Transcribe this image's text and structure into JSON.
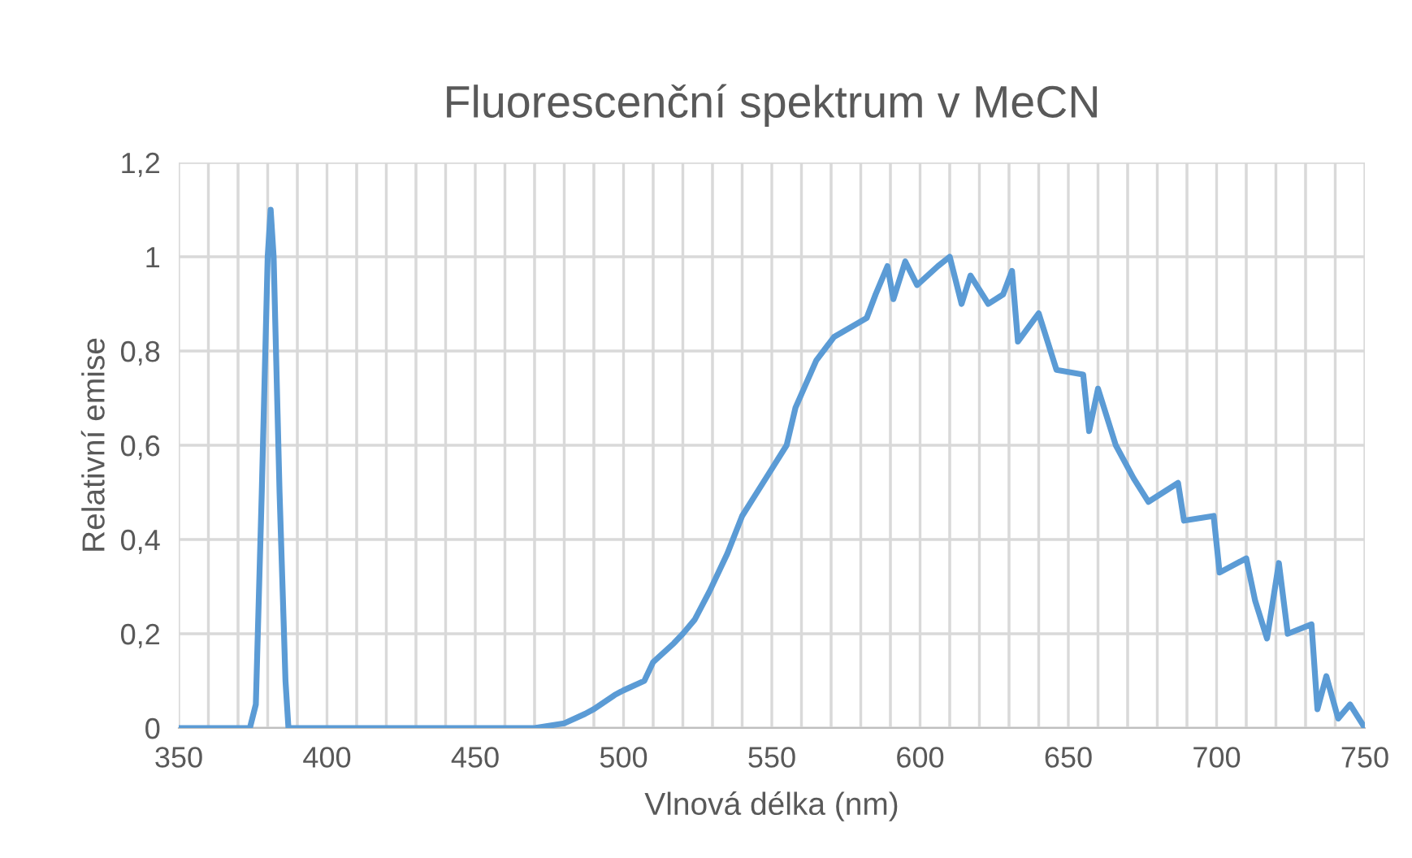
{
  "chart_data": {
    "type": "line",
    "title": "Fluorescenční spektrum v MeCN",
    "xlabel": "Vlnová délka (nm)",
    "ylabel": "Relativní emise",
    "series": [
      {
        "color": "#5b9bd5",
        "x": [
          350,
          374,
          376,
          378,
          380,
          381,
          382,
          384,
          386,
          387,
          470,
          480,
          487,
          490,
          497,
          500,
          507,
          510,
          517,
          520,
          524,
          529,
          535,
          540,
          543,
          549,
          555,
          558,
          565,
          571,
          582,
          585,
          589,
          591,
          595,
          599,
          606,
          610,
          614,
          617,
          623,
          628,
          631,
          633,
          640,
          646,
          655,
          657,
          660,
          666,
          672,
          677,
          687,
          689,
          699,
          701,
          710,
          713,
          717,
          721,
          724,
          732,
          734,
          737,
          741,
          745,
          749,
          750
        ],
        "values": [
          0,
          0,
          0.05,
          0.5,
          1.0,
          1.1,
          1.0,
          0.5,
          0.1,
          0,
          0,
          0.01,
          0.03,
          0.04,
          0.07,
          0.08,
          0.1,
          0.14,
          0.18,
          0.2,
          0.23,
          0.29,
          0.37,
          0.45,
          0.48,
          0.54,
          0.6,
          0.68,
          0.78,
          0.83,
          0.87,
          0.92,
          0.98,
          0.91,
          0.99,
          0.94,
          0.98,
          1.0,
          0.9,
          0.96,
          0.9,
          0.92,
          0.97,
          0.82,
          0.88,
          0.76,
          0.75,
          0.63,
          0.72,
          0.6,
          0.53,
          0.48,
          0.52,
          0.44,
          0.45,
          0.33,
          0.36,
          0.27,
          0.19,
          0.35,
          0.2,
          0.22,
          0.04,
          0.11,
          0.02,
          0.05,
          0.01,
          0
        ]
      }
    ],
    "xlim": [
      350,
      750
    ],
    "ylim": [
      0,
      1.2
    ],
    "xticks": [
      350,
      {
        "value": 360,
        "label": null
      },
      {
        "value": 370,
        "label": null
      },
      {
        "value": 380,
        "label": null
      },
      {
        "value": 390,
        "label": null
      },
      400,
      {
        "value": 410,
        "label": null
      },
      {
        "value": 420,
        "label": null
      },
      {
        "value": 430,
        "label": null
      },
      {
        "value": 440,
        "label": null
      },
      450,
      {
        "value": 460,
        "label": null
      },
      {
        "value": 470,
        "label": null
      },
      {
        "value": 480,
        "label": null
      },
      {
        "value": 490,
        "label": null
      },
      500,
      {
        "value": 510,
        "label": null
      },
      {
        "value": 520,
        "label": null
      },
      {
        "value": 530,
        "label": null
      },
      {
        "value": 540,
        "label": null
      },
      550,
      {
        "value": 560,
        "label": null
      },
      {
        "value": 570,
        "label": null
      },
      {
        "value": 580,
        "label": null
      },
      {
        "value": 590,
        "label": null
      },
      600,
      {
        "value": 610,
        "label": null
      },
      {
        "value": 620,
        "label": null
      },
      {
        "value": 630,
        "label": null
      },
      {
        "value": 640,
        "label": null
      },
      650,
      {
        "value": 660,
        "label": null
      },
      {
        "value": 670,
        "label": null
      },
      {
        "value": 680,
        "label": null
      },
      {
        "value": 690,
        "label": null
      },
      700,
      {
        "value": 710,
        "label": null
      },
      {
        "value": 720,
        "label": null
      },
      {
        "value": 730,
        "label": null
      },
      {
        "value": 740,
        "label": null
      },
      750
    ],
    "yticks": [
      0,
      {
        "value": 0.2,
        "label": "0,2"
      },
      {
        "value": 0.4,
        "label": "0,4"
      },
      {
        "value": 0.6,
        "label": "0,6"
      },
      {
        "value": 0.8,
        "label": "0,8"
      },
      1,
      {
        "value": 1.2,
        "label": "1,2"
      }
    ],
    "grid": true,
    "marker": "none",
    "line_style": "solid"
  }
}
